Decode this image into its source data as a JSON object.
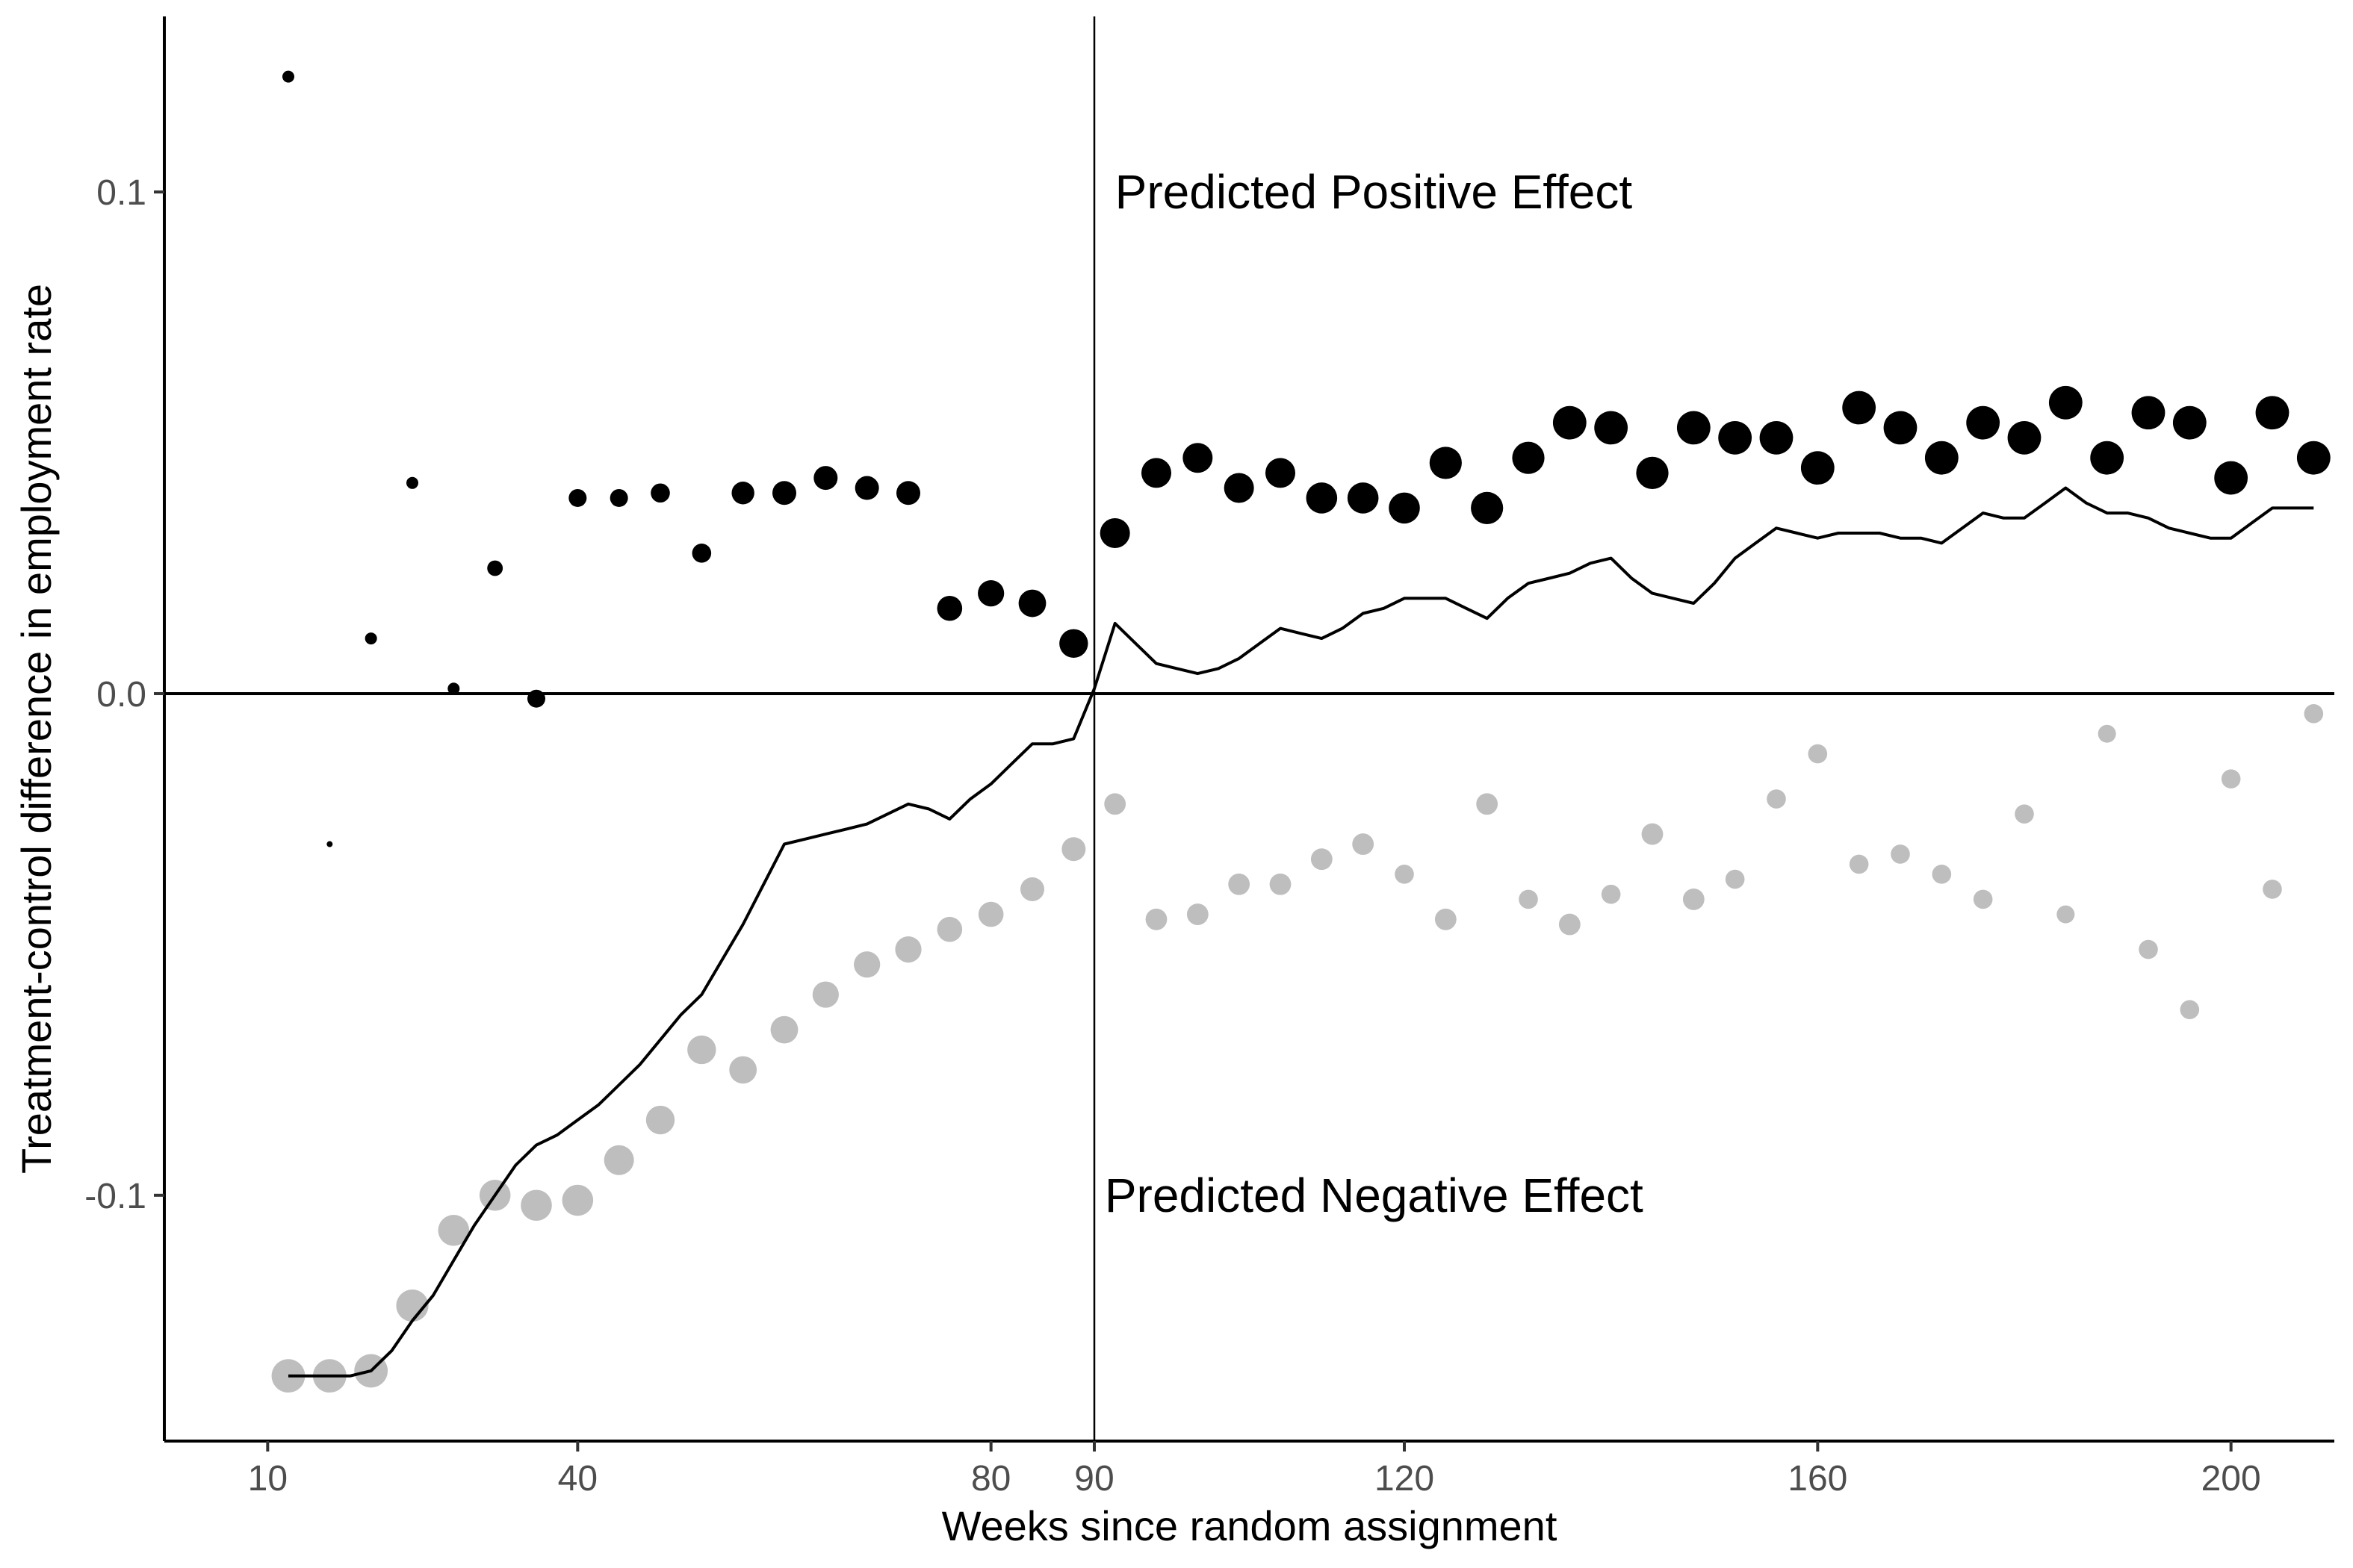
{
  "chart_data": {
    "type": "scatter",
    "title": "",
    "xlabel": "Weeks since random assignment",
    "ylabel": "Treatment-control difference in employment rate",
    "xlim": [
      0,
      210
    ],
    "ylim": [
      -0.149,
      0.135
    ],
    "x_ticks": [
      10,
      40,
      80,
      90,
      120,
      160,
      200
    ],
    "x_tick_labels": [
      "10",
      "40",
      "80",
      "90",
      "120",
      "160",
      "200"
    ],
    "y_ticks": [
      0.1,
      0.0,
      -0.1
    ],
    "y_tick_labels": [
      "0.1",
      "0.0",
      "-0.1"
    ],
    "reference_lines": {
      "horizontal_y": 0.0,
      "vertical_x": 90
    },
    "annotations": {
      "positive": {
        "text": "Predicted Positive Effect",
        "x": 92,
        "y": 0.1
      },
      "negative": {
        "text": "Predicted Negative Effect",
        "x": 91,
        "y": -0.1
      }
    },
    "grid": false,
    "legend": "none",
    "colors": {
      "positive_points": "#000000",
      "negative_points": "#bebebe",
      "line": "#000000",
      "axis": "#000000"
    },
    "series": [
      {
        "role": "positive_points",
        "x": [
          12,
          16,
          20,
          24,
          28,
          32,
          36,
          40,
          44,
          48,
          52,
          56,
          60,
          64,
          68,
          72,
          76,
          80,
          84,
          88,
          92,
          96,
          100,
          104,
          108,
          112,
          116,
          120,
          124,
          128,
          132,
          136,
          140,
          144,
          148,
          152,
          156,
          160,
          164,
          168,
          172,
          176,
          180,
          184,
          188,
          192,
          196,
          200,
          204,
          208
        ],
        "y": [
          0.123,
          -0.03,
          0.011,
          0.042,
          0.001,
          0.025,
          -0.001,
          0.039,
          0.039,
          0.04,
          0.028,
          0.04,
          0.04,
          0.043,
          0.041,
          0.04,
          0.017,
          0.02,
          0.018,
          0.01,
          0.032,
          0.044,
          0.047,
          0.041,
          0.044,
          0.039,
          0.039,
          0.037,
          0.046,
          0.037,
          0.047,
          0.054,
          0.053,
          0.044,
          0.053,
          0.051,
          0.051,
          0.045,
          0.057,
          0.053,
          0.047,
          0.054,
          0.051,
          0.058,
          0.047,
          0.056,
          0.054,
          0.043,
          0.056,
          0.047
        ],
        "size": [
          1,
          0.5,
          1,
          1,
          1,
          1.3,
          1.5,
          1.5,
          1.5,
          1.6,
          1.6,
          1.9,
          2.0,
          2.0,
          2.0,
          2.0,
          2.1,
          2.2,
          2.3,
          2.4,
          2.5,
          2.5,
          2.5,
          2.5,
          2.5,
          2.6,
          2.6,
          2.6,
          2.7,
          2.7,
          2.7,
          2.8,
          2.8,
          2.7,
          2.8,
          2.8,
          2.8,
          2.8,
          2.8,
          2.8,
          2.8,
          2.8,
          2.8,
          2.8,
          2.8,
          2.8,
          2.8,
          2.8,
          2.8,
          2.8
        ]
      },
      {
        "role": "negative_points",
        "x": [
          12,
          16,
          20,
          24,
          28,
          32,
          36,
          40,
          44,
          48,
          52,
          56,
          60,
          64,
          68,
          72,
          76,
          80,
          84,
          88,
          92,
          96,
          100,
          104,
          108,
          112,
          116,
          120,
          124,
          128,
          132,
          136,
          140,
          144,
          148,
          152,
          156,
          160,
          164,
          168,
          172,
          176,
          180,
          184,
          188,
          192,
          196,
          200,
          204,
          208
        ],
        "y": [
          -0.136,
          -0.136,
          -0.135,
          -0.122,
          -0.107,
          -0.1,
          -0.102,
          -0.101,
          -0.093,
          -0.085,
          -0.071,
          -0.075,
          -0.067,
          -0.06,
          -0.054,
          -0.051,
          -0.047,
          -0.044,
          -0.039,
          -0.031,
          -0.022,
          -0.045,
          -0.044,
          -0.038,
          -0.038,
          -0.033,
          -0.03,
          -0.036,
          -0.045,
          -0.022,
          -0.041,
          -0.046,
          -0.04,
          -0.028,
          -0.041,
          -0.037,
          -0.021,
          -0.012,
          -0.034,
          -0.032,
          -0.036,
          -0.041,
          -0.024,
          -0.044,
          -0.008,
          -0.051,
          -0.063,
          -0.017,
          -0.039,
          -0.004
        ],
        "size": [
          2.8,
          2.8,
          2.8,
          2.7,
          2.6,
          2.6,
          2.6,
          2.6,
          2.5,
          2.4,
          2.4,
          2.3,
          2.3,
          2.2,
          2.2,
          2.2,
          2.1,
          2.1,
          2.0,
          2.0,
          1.8,
          1.8,
          1.8,
          1.8,
          1.8,
          1.8,
          1.8,
          1.6,
          1.8,
          1.8,
          1.6,
          1.8,
          1.6,
          1.8,
          1.8,
          1.6,
          1.6,
          1.6,
          1.6,
          1.6,
          1.6,
          1.6,
          1.6,
          1.5,
          1.5,
          1.6,
          1.6,
          1.6,
          1.6,
          1.6
        ]
      },
      {
        "role": "line",
        "x": [
          12,
          14,
          16,
          18,
          20,
          22,
          24,
          26,
          28,
          30,
          32,
          34,
          36,
          38,
          40,
          42,
          44,
          46,
          48,
          50,
          52,
          54,
          56,
          58,
          60,
          62,
          64,
          66,
          68,
          70,
          72,
          74,
          76,
          78,
          80,
          82,
          84,
          86,
          88,
          90,
          92,
          94,
          96,
          98,
          100,
          102,
          104,
          106,
          108,
          110,
          112,
          114,
          116,
          118,
          120,
          122,
          124,
          126,
          128,
          130,
          132,
          134,
          136,
          138,
          140,
          142,
          144,
          146,
          148,
          150,
          152,
          154,
          156,
          158,
          160,
          162,
          164,
          166,
          168,
          170,
          172,
          174,
          176,
          178,
          180,
          182,
          184,
          186,
          188,
          190,
          192,
          194,
          196,
          198,
          200,
          202,
          204,
          206,
          208
        ],
        "y": [
          -0.136,
          -0.136,
          -0.136,
          -0.136,
          -0.135,
          -0.131,
          -0.125,
          -0.12,
          -0.113,
          -0.106,
          -0.1,
          -0.094,
          -0.09,
          -0.088,
          -0.085,
          -0.082,
          -0.078,
          -0.074,
          -0.069,
          -0.064,
          -0.06,
          -0.053,
          -0.046,
          -0.038,
          -0.03,
          -0.029,
          -0.028,
          -0.027,
          -0.026,
          -0.024,
          -0.022,
          -0.023,
          -0.025,
          -0.021,
          -0.018,
          -0.014,
          -0.01,
          -0.01,
          -0.009,
          0.001,
          0.014,
          0.01,
          0.006,
          0.005,
          0.004,
          0.005,
          0.007,
          0.01,
          0.013,
          0.012,
          0.011,
          0.013,
          0.016,
          0.017,
          0.019,
          0.019,
          0.019,
          0.017,
          0.015,
          0.019,
          0.022,
          0.023,
          0.024,
          0.026,
          0.027,
          0.023,
          0.02,
          0.019,
          0.018,
          0.022,
          0.027,
          0.03,
          0.033,
          0.032,
          0.031,
          0.032,
          0.032,
          0.032,
          0.031,
          0.031,
          0.03,
          0.033,
          0.036,
          0.035,
          0.035,
          0.038,
          0.041,
          0.038,
          0.036,
          0.036,
          0.035,
          0.033,
          0.032,
          0.031,
          0.031,
          0.034,
          0.037,
          0.037,
          0.037
        ]
      }
    ]
  }
}
